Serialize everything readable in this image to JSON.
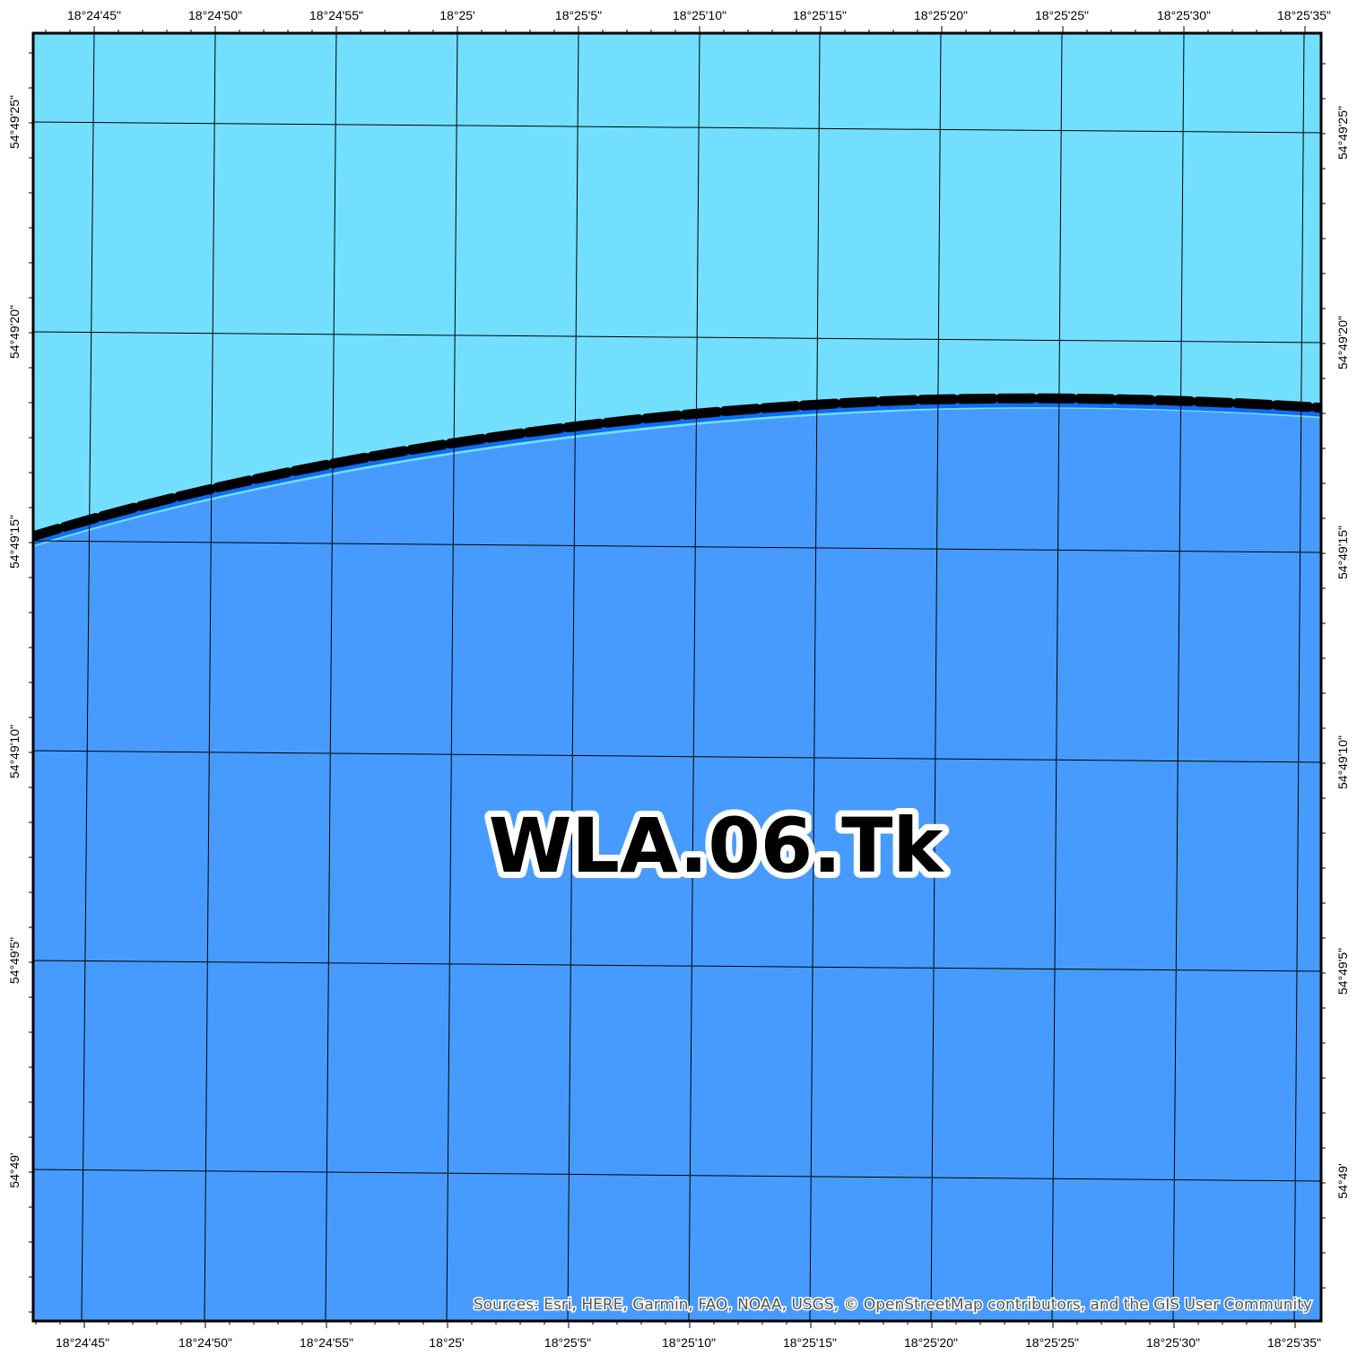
{
  "map": {
    "zone_label": "WLA.06.Tk",
    "attribution": "Sources:  Esri, HERE, Garmin, FAO, NOAA, USGS, © OpenStreetMap contributors, and the GIS User Community",
    "colors": {
      "upper_water": "#72DFFE",
      "lower_water": "#479BFE",
      "boundary_band": "#0D6EF5",
      "boundary_line": "#000000",
      "frame": "#000000",
      "graticule": "#000000"
    },
    "boundary_style": "thick-dashed-line",
    "longitude_labels": [
      "18°24'45\"",
      "18°24'50\"",
      "18°24'55\"",
      "18°25'",
      "18°25'5\"",
      "18°25'10\"",
      "18°25'15\"",
      "18°25'20\"",
      "18°25'25\"",
      "18°25'30\"",
      "18°25'35\""
    ],
    "latitude_labels": [
      "54°49'25\"",
      "54°49'20\"",
      "54°49'15\"",
      "54°49'10\"",
      "54°49'5\"",
      "54°49'"
    ]
  }
}
